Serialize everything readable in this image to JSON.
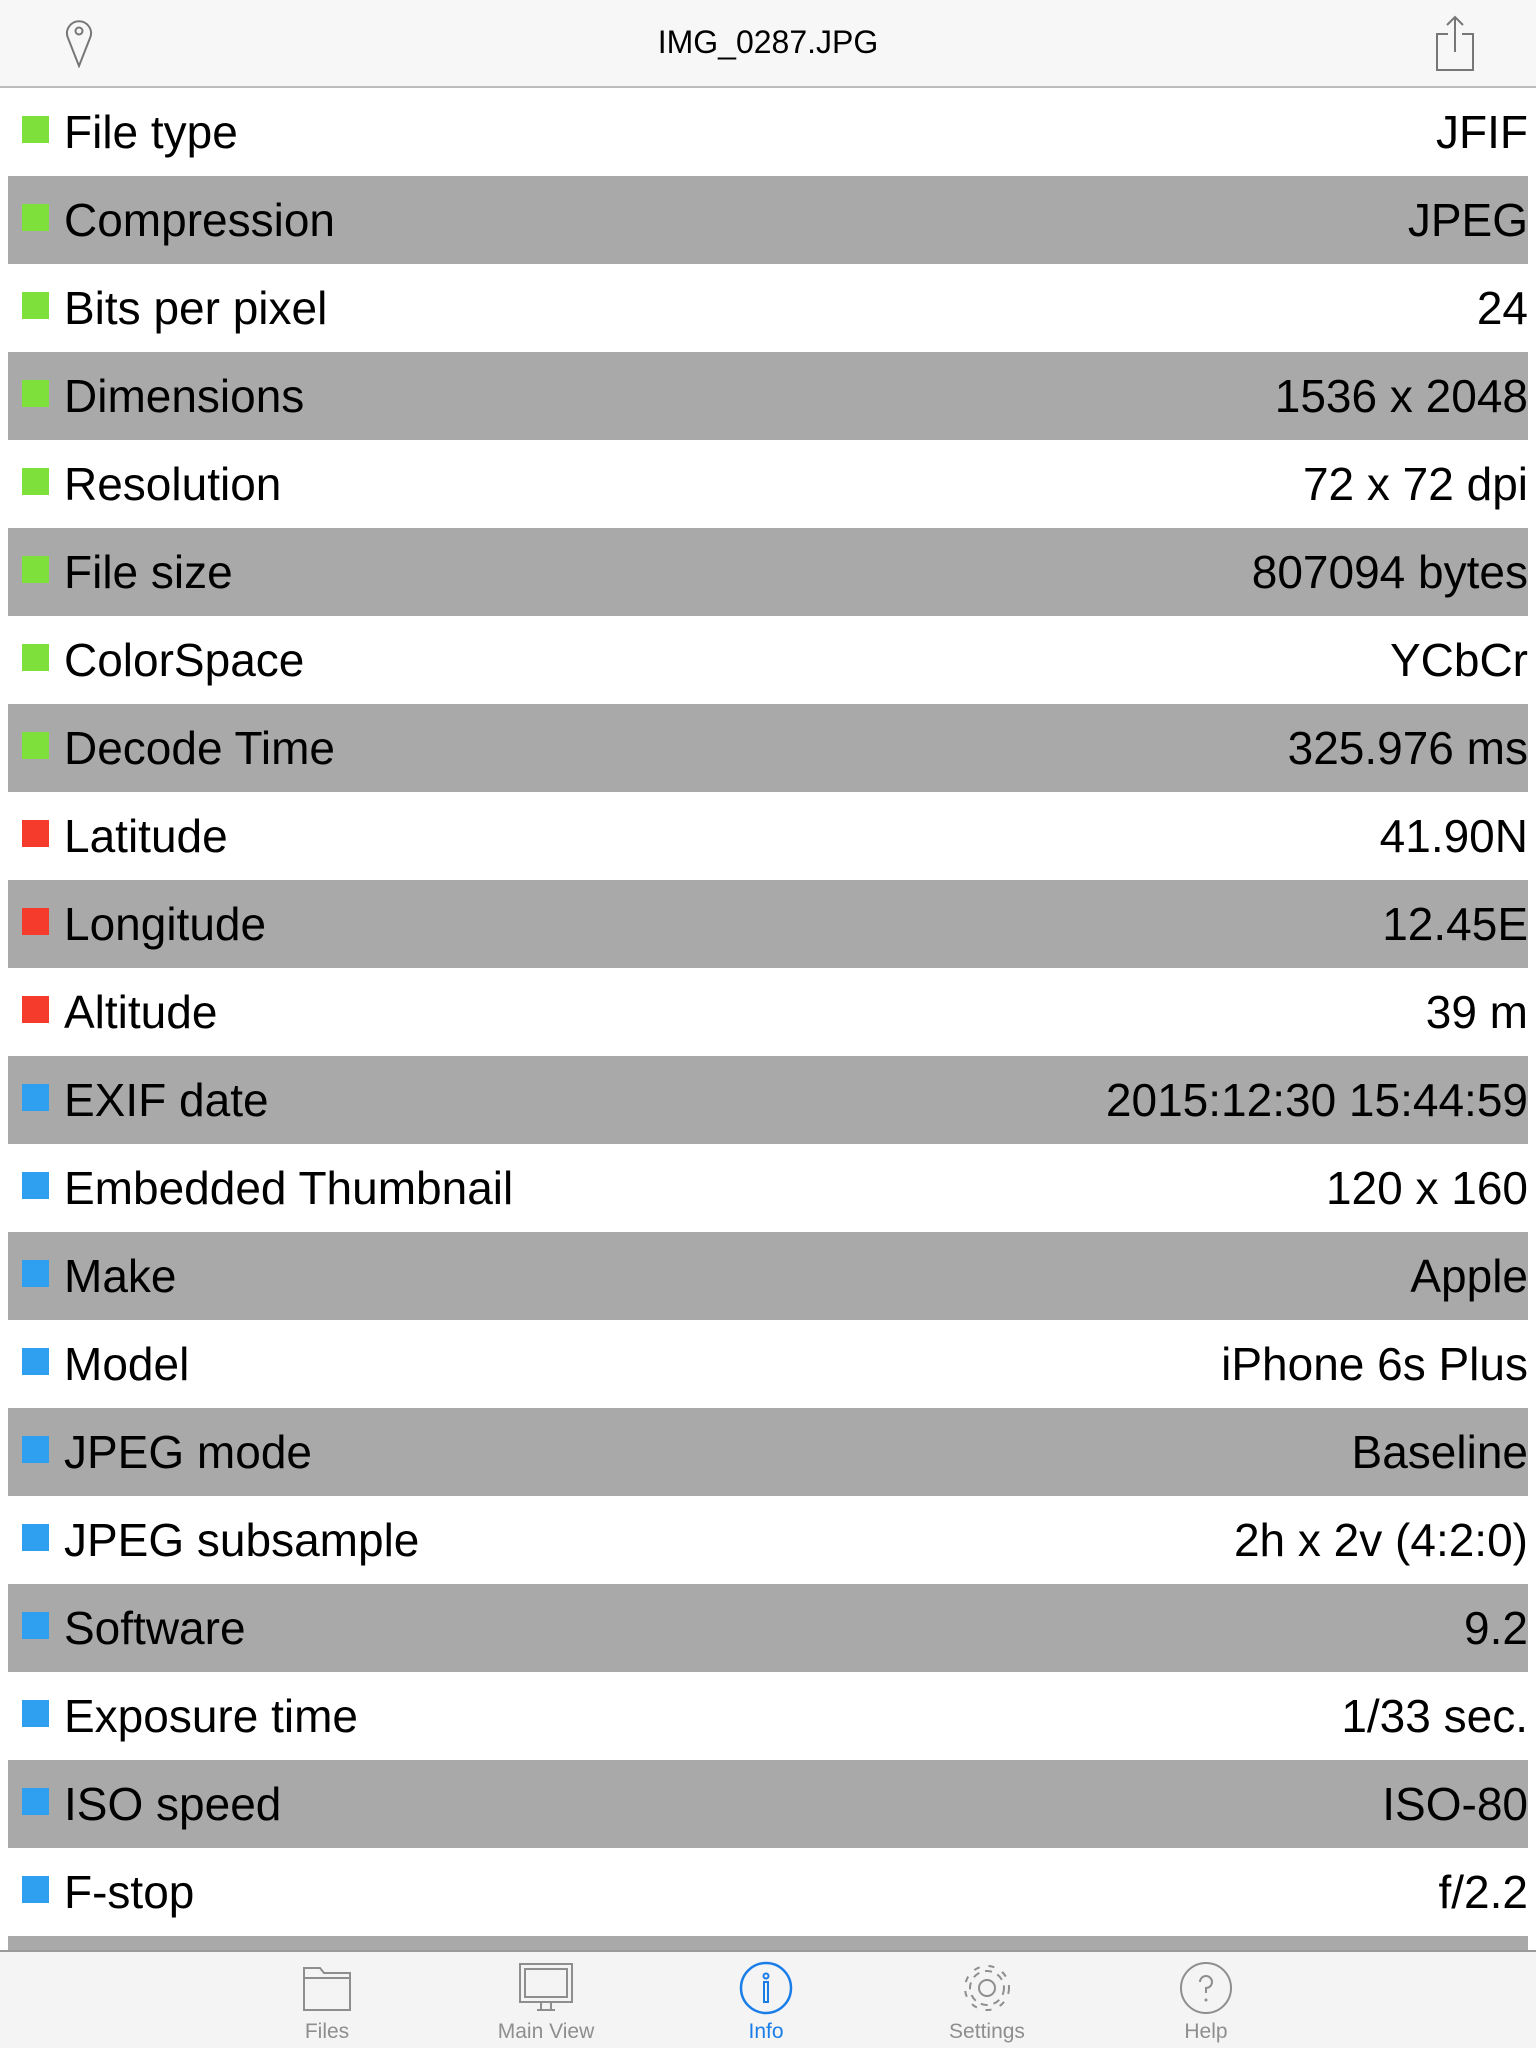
{
  "header": {
    "title": "IMG_0287.JPG",
    "left_icon": "location-pin-icon",
    "right_icon": "share-icon"
  },
  "colors": {
    "green": "#7ee03b",
    "red": "#f53b2c",
    "blue": "#2f9ff0",
    "stripe": "#a9a9a9",
    "active_tab": "#1a7de8"
  },
  "rows": [
    {
      "label": "File type",
      "value": "JFIF",
      "color": "green"
    },
    {
      "label": "Compression",
      "value": "JPEG",
      "color": "green"
    },
    {
      "label": "Bits per pixel",
      "value": "24",
      "color": "green"
    },
    {
      "label": "Dimensions",
      "value": "1536 x 2048",
      "color": "green"
    },
    {
      "label": "Resolution",
      "value": "72 x 72 dpi",
      "color": "green"
    },
    {
      "label": "File size",
      "value": "807094 bytes",
      "color": "green"
    },
    {
      "label": "ColorSpace",
      "value": "YCbCr",
      "color": "green"
    },
    {
      "label": "Decode Time",
      "value": "325.976 ms",
      "color": "green"
    },
    {
      "label": "Latitude",
      "value": "41.90N",
      "color": "red"
    },
    {
      "label": "Longitude",
      "value": "12.45E",
      "color": "red"
    },
    {
      "label": "Altitude",
      "value": "39 m",
      "color": "red"
    },
    {
      "label": "EXIF date",
      "value": "2015:12:30 15:44:59",
      "color": "blue"
    },
    {
      "label": "Embedded Thumbnail",
      "value": "120 x 160",
      "color": "blue"
    },
    {
      "label": "Make",
      "value": "Apple",
      "color": "blue"
    },
    {
      "label": "Model",
      "value": "iPhone 6s Plus",
      "color": "blue"
    },
    {
      "label": "JPEG mode",
      "value": "Baseline",
      "color": "blue"
    },
    {
      "label": "JPEG subsample",
      "value": "2h x 2v (4:2:0)",
      "color": "blue"
    },
    {
      "label": "Software",
      "value": "9.2",
      "color": "blue"
    },
    {
      "label": "Exposure time",
      "value": "1/33 sec.",
      "color": "blue"
    },
    {
      "label": "ISO speed",
      "value": "ISO-80",
      "color": "blue"
    },
    {
      "label": "F-stop",
      "value": "f/2.2",
      "color": "blue"
    }
  ],
  "tabs": [
    {
      "label": "Files",
      "icon": "folder-icon",
      "active": false
    },
    {
      "label": "Main View",
      "icon": "monitor-icon",
      "active": false
    },
    {
      "label": "Info",
      "icon": "info-icon",
      "active": true
    },
    {
      "label": "Settings",
      "icon": "gear-icon",
      "active": false
    },
    {
      "label": "Help",
      "icon": "help-icon",
      "active": false
    }
  ]
}
